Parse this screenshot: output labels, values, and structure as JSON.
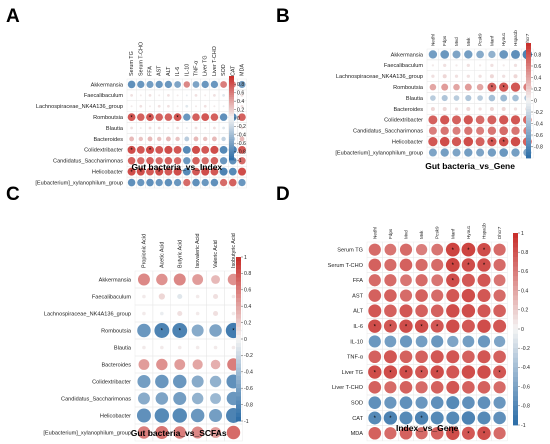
{
  "figure": {
    "panel_label_color": "#000000",
    "colors": {
      "positive": "#c9302c",
      "neutral": "#f4f4f4",
      "negative": "#2f6fa8"
    }
  },
  "chart_data": [
    {
      "panel": "A",
      "type": "heatmap",
      "style": "corrplot-upper",
      "title": "Gut bacteria_vs_Index",
      "xlabel": "",
      "ylabel": "",
      "x_labels": [
        "Serum TG",
        "Serum T-CHO",
        "FFA",
        "AST",
        "ALT",
        "IL-6",
        "IL-10",
        "TNF-α",
        "Liver TG",
        "Liver T-CHO",
        "SOD",
        "CAT",
        "MDA"
      ],
      "y_labels": [
        "Akkermansia",
        "Faecalibaculum",
        "Lachnospiraceae_NK4A136_group",
        "Romboutsia",
        "Blautia",
        "Bacteroides",
        "Colidextribacter",
        "Candidatus_Saccharimonas",
        "Helicobacter",
        "[Eubacterium]_xylanophilum_group"
      ],
      "colorbar": {
        "ticks": [
          0.8,
          0.6,
          0.4,
          0.2,
          0,
          -0.2,
          -0.4,
          -0.6,
          -0.8,
          -1
        ],
        "range": [
          -1,
          1
        ]
      },
      "values": [
        [
          -0.75,
          -0.7,
          -0.65,
          -0.7,
          -0.7,
          -0.6,
          0.55,
          -0.6,
          -0.7,
          -0.7,
          0.6,
          0.55,
          -0.65
        ],
        [
          0.1,
          0.05,
          0.1,
          0.05,
          0.1,
          0.05,
          -0.05,
          0.1,
          0.05,
          0.1,
          -0.1,
          -0.05,
          0.1
        ],
        [
          0.05,
          0.1,
          0.05,
          0.1,
          0.1,
          0.05,
          -0.1,
          0.05,
          0.1,
          0.05,
          -0.05,
          -0.1,
          0.1
        ],
        [
          0.8,
          0.75,
          0.8,
          0.75,
          0.75,
          0.8,
          -0.7,
          0.75,
          0.8,
          0.75,
          -0.75,
          -0.8,
          0.75
        ],
        [
          0.1,
          0.05,
          0.1,
          0.1,
          0.05,
          0.1,
          -0.05,
          0.1,
          0.05,
          0.1,
          -0.1,
          -0.05,
          0.1
        ],
        [
          0.3,
          0.25,
          0.3,
          0.25,
          0.3,
          0.25,
          -0.3,
          0.3,
          0.25,
          0.3,
          -0.25,
          -0.3,
          0.3
        ],
        [
          0.85,
          0.8,
          0.85,
          0.8,
          0.85,
          0.8,
          -0.8,
          0.85,
          0.8,
          0.85,
          -0.8,
          -0.85,
          0.8
        ],
        [
          0.75,
          0.7,
          0.75,
          0.7,
          0.75,
          0.7,
          -0.7,
          0.75,
          0.7,
          0.75,
          -0.7,
          -0.75,
          0.7
        ],
        [
          0.85,
          0.85,
          0.8,
          0.85,
          0.8,
          0.85,
          -0.8,
          0.8,
          0.85,
          0.8,
          -0.85,
          -0.8,
          0.85
        ],
        [
          -0.75,
          -0.7,
          -0.75,
          -0.7,
          -0.75,
          -0.7,
          0.7,
          -0.75,
          -0.7,
          -0.75,
          0.7,
          0.75,
          -0.7
        ]
      ],
      "stars": [
        [
          3,
          0
        ],
        [
          3,
          2
        ],
        [
          3,
          5
        ],
        [
          6,
          0
        ],
        [
          6,
          2
        ],
        [
          8,
          0
        ],
        [
          8,
          1
        ],
        [
          8,
          3
        ]
      ]
    },
    {
      "panel": "B",
      "type": "heatmap",
      "style": "corrplot-full",
      "title": "Gut bacteria_vs_Gene",
      "xlabel": "",
      "ylabel": "",
      "x_labels": [
        "Nedhl",
        "Fdps",
        "Mvd",
        "Mvk",
        "Pcsk9",
        "Manf",
        "Hyou1",
        "Hspa1b",
        "Dhcr7"
      ],
      "y_labels": [
        "Akkermansia",
        "Faecalibaculum",
        "Lachnospiraceae_NK4A136_group",
        "Romboutsia",
        "Blautia",
        "Bacteroides",
        "Colidextribacter",
        "Candidatus_Saccharimonas",
        "Helicobacter",
        "[Eubacterium]_xylanophilum_group"
      ],
      "colorbar": {
        "ticks": [
          0.8,
          0.6,
          0.4,
          0.2,
          0,
          -0.2,
          -0.4,
          -0.6,
          -0.8
        ],
        "range": [
          -1,
          1
        ]
      },
      "values": [
        [
          -0.65,
          -0.7,
          -0.6,
          -0.65,
          -0.55,
          -0.5,
          -0.7,
          -0.75,
          -0.85
        ],
        [
          0.05,
          0.1,
          0.05,
          0.1,
          0.05,
          0.1,
          0.05,
          0.1,
          0.1
        ],
        [
          0.1,
          0.15,
          0.1,
          0.1,
          0.1,
          0.15,
          0.1,
          0.15,
          0.1
        ],
        [
          0.4,
          0.45,
          0.4,
          0.45,
          0.4,
          0.75,
          0.8,
          0.8,
          0.6
        ],
        [
          -0.3,
          -0.35,
          -0.3,
          -0.35,
          -0.3,
          -0.4,
          -0.45,
          -0.4,
          -0.35
        ],
        [
          0.15,
          0.15,
          0.1,
          0.15,
          0.1,
          0.15,
          0.15,
          0.1,
          0.15
        ],
        [
          0.75,
          0.8,
          0.75,
          0.8,
          0.7,
          0.75,
          0.8,
          0.8,
          0.7
        ],
        [
          0.6,
          0.65,
          0.6,
          0.65,
          0.6,
          0.65,
          0.7,
          0.65,
          0.6
        ],
        [
          0.8,
          0.85,
          0.8,
          0.85,
          0.75,
          0.8,
          0.85,
          0.85,
          0.75
        ],
        [
          -0.6,
          -0.65,
          -0.6,
          -0.65,
          -0.6,
          -0.65,
          -0.7,
          -0.65,
          -0.6
        ]
      ],
      "stars": [
        [
          0,
          8
        ],
        [
          3,
          5
        ],
        [
          3,
          6
        ],
        [
          8,
          5
        ],
        [
          8,
          6
        ]
      ]
    },
    {
      "panel": "C",
      "type": "heatmap",
      "style": "corrplot-full",
      "title": "Gut bacteria_vs_SCFAs",
      "xlabel": "",
      "ylabel": "",
      "x_labels": [
        "Propionic Acid",
        "Acetic Acid",
        "Butyric Acid",
        "Isovaleric Acid",
        "Valeric Acid",
        "Isobutyric Acid"
      ],
      "y_labels": [
        "Akkermansia",
        "Faecalibaculum",
        "Lachnospiraceae_NK4A136_group",
        "Romboutsia",
        "Blautia",
        "Bacteroides",
        "Colidextribacter",
        "Candidatus_Saccharimonas",
        "Helicobacter",
        "[Eubacterium]_xylanophilum_group"
      ],
      "colorbar": {
        "ticks": [
          1,
          0.8,
          0.6,
          0.4,
          0.2,
          0,
          -0.2,
          -0.4,
          -0.6,
          -0.8,
          -1
        ],
        "range": [
          -1,
          1
        ]
      },
      "values": [
        [
          0.55,
          0.5,
          0.55,
          0.45,
          0.3,
          0.5
        ],
        [
          0.05,
          0.15,
          -0.1,
          0.05,
          0.1,
          0.05
        ],
        [
          0.05,
          -0.05,
          0.1,
          0.05,
          0.1,
          0.05
        ],
        [
          -0.7,
          -0.85,
          -0.85,
          -0.55,
          -0.6,
          -0.9
        ],
        [
          0.05,
          0.05,
          0.05,
          0.05,
          0.05,
          0.05
        ],
        [
          0.45,
          0.5,
          0.45,
          0.4,
          0.35,
          0.6
        ],
        [
          -0.65,
          -0.7,
          -0.7,
          -0.55,
          -0.5,
          -0.75
        ],
        [
          -0.55,
          -0.6,
          -0.65,
          -0.5,
          -0.45,
          -0.7
        ],
        [
          -0.75,
          -0.8,
          -0.8,
          -0.7,
          -0.65,
          -0.85
        ],
        [
          0.6,
          0.65,
          0.6,
          0.55,
          0.45,
          0.7
        ]
      ],
      "stars": [
        [
          3,
          1
        ],
        [
          3,
          2
        ],
        [
          3,
          5
        ]
      ]
    },
    {
      "panel": "D",
      "type": "heatmap",
      "style": "corrplot-full",
      "title": "Index_vs_Gene",
      "xlabel": "",
      "ylabel": "",
      "x_labels": [
        "Nedhl",
        "Fdps",
        "Mvd",
        "Mvk",
        "Pcsk9",
        "Manf",
        "Hyou1",
        "Hspa1b",
        "Dhcr7"
      ],
      "y_labels": [
        "Serum TG",
        "Serum T-CHO",
        "FFA",
        "AST",
        "ALT",
        "IL-6",
        "IL-10",
        "TNF-α",
        "Liver TG",
        "Liver T-CHO",
        "SOD",
        "CAT",
        "MDA"
      ],
      "colorbar": {
        "ticks": [
          1,
          0.8,
          0.6,
          0.4,
          0.2,
          0,
          -0.2,
          -0.4,
          -0.6,
          -0.8,
          -1
        ],
        "range": [
          -1,
          1
        ]
      },
      "values": [
        [
          0.7,
          0.65,
          0.7,
          0.6,
          0.65,
          0.9,
          0.9,
          0.85,
          0.7
        ],
        [
          0.75,
          0.7,
          0.75,
          0.7,
          0.7,
          0.9,
          0.85,
          0.85,
          0.7
        ],
        [
          0.7,
          0.7,
          0.65,
          0.7,
          0.65,
          0.85,
          0.8,
          0.8,
          0.65
        ],
        [
          0.75,
          0.75,
          0.7,
          0.75,
          0.7,
          0.8,
          0.85,
          0.8,
          0.7
        ],
        [
          0.8,
          0.75,
          0.8,
          0.75,
          0.75,
          0.85,
          0.85,
          0.8,
          0.75
        ],
        [
          0.85,
          0.8,
          0.85,
          0.85,
          0.8,
          0.85,
          0.8,
          0.85,
          0.8
        ],
        [
          -0.7,
          -0.65,
          -0.7,
          -0.65,
          -0.7,
          -0.6,
          -0.65,
          -0.7,
          -0.6
        ],
        [
          0.75,
          0.8,
          0.75,
          0.75,
          0.8,
          0.8,
          0.75,
          0.8,
          0.75
        ],
        [
          0.85,
          0.85,
          0.85,
          0.8,
          0.85,
          0.8,
          0.85,
          0.85,
          0.8
        ],
        [
          0.75,
          0.7,
          0.75,
          0.7,
          0.75,
          0.8,
          0.75,
          0.75,
          0.7
        ],
        [
          -0.75,
          -0.7,
          -0.75,
          -0.7,
          -0.75,
          -0.8,
          -0.75,
          -0.75,
          -0.7
        ],
        [
          -0.8,
          -0.85,
          -0.8,
          -0.85,
          -0.8,
          -0.8,
          -0.85,
          -0.8,
          -0.75
        ],
        [
          0.75,
          0.7,
          0.75,
          0.7,
          0.75,
          0.85,
          0.8,
          0.85,
          0.7
        ]
      ],
      "stars": [
        [
          0,
          5
        ],
        [
          0,
          6
        ],
        [
          0,
          7
        ],
        [
          1,
          5
        ],
        [
          1,
          6
        ],
        [
          1,
          7
        ],
        [
          2,
          5
        ],
        [
          5,
          0
        ],
        [
          5,
          1
        ],
        [
          5,
          2
        ],
        [
          5,
          3
        ],
        [
          5,
          4
        ],
        [
          8,
          0
        ],
        [
          8,
          1
        ],
        [
          8,
          2
        ],
        [
          8,
          3
        ],
        [
          8,
          4
        ],
        [
          8,
          8
        ],
        [
          11,
          0
        ],
        [
          11,
          1
        ],
        [
          11,
          3
        ],
        [
          12,
          5
        ],
        [
          12,
          6
        ],
        [
          12,
          7
        ]
      ]
    }
  ]
}
